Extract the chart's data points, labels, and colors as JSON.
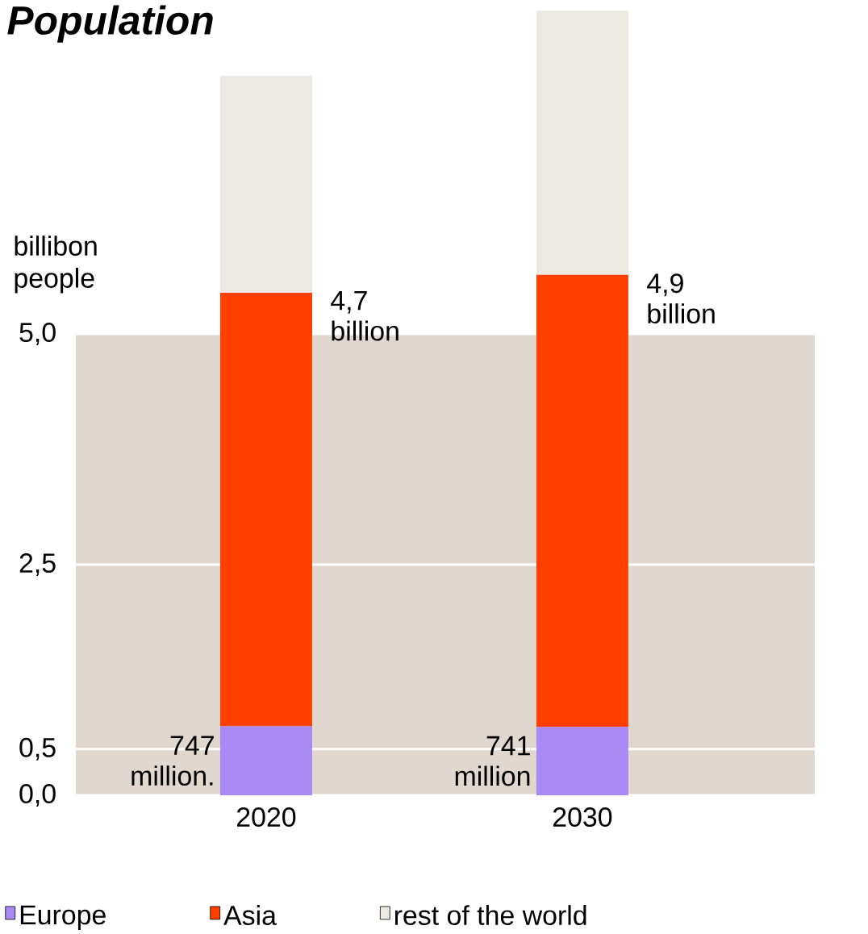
{
  "chart_data": {
    "type": "bar",
    "title": "Population",
    "ylabel": "billibon people",
    "stacked": true,
    "categories": [
      "2020",
      "2030"
    ],
    "series": [
      {
        "name": "Europe",
        "color": "#a98af5",
        "values": [
          0.747,
          0.741
        ]
      },
      {
        "name": "Asia",
        "color": "#ff4000",
        "values": [
          4.7,
          4.9
        ]
      },
      {
        "name": "rest of the world",
        "color": "#ece8e2",
        "values": [
          2.35,
          2.86
        ]
      }
    ],
    "annotations": [
      {
        "text": "747 million.",
        "x": "2020",
        "y": 0.747
      },
      {
        "text": "4,7 billion",
        "x": "2020",
        "y": 5.45
      },
      {
        "text": "741 million",
        "x": "2030",
        "y": 0.741
      },
      {
        "text": "4,9 billion",
        "x": "2030",
        "y": 5.64
      }
    ],
    "ylim": [
      0,
      8.55
    ],
    "yticks": [
      {
        "value": 0,
        "label": "0,0"
      },
      {
        "value": 0.5,
        "label": "0,5"
      },
      {
        "value": 2.5,
        "label": "2,5"
      },
      {
        "value": 5,
        "label": "5,0"
      }
    ],
    "bands": [
      {
        "axis": "y",
        "from": 0,
        "to": 5,
        "color": "#e0d8ce"
      }
    ],
    "grid": "y",
    "legend": "bottom"
  }
}
